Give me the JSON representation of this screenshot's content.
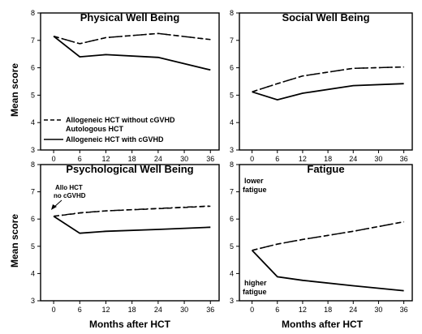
{
  "figure": {
    "ylabel": "Mean score",
    "xlabel": "Months after HCT"
  },
  "legend": {
    "entries": [
      "Allogeneic HCT without cGVHD",
      "Autologous HCT",
      "Allogeneic HCT with cGVHD"
    ]
  },
  "chart_data": [
    {
      "type": "line",
      "title": "Physical Well Being",
      "xlabel": "",
      "ylabel": "Mean score",
      "x_ticks": [
        0,
        6,
        12,
        18,
        24,
        30,
        36
      ],
      "y_ticks": [
        3,
        4,
        5,
        6,
        7,
        8
      ],
      "xlim": [
        -3,
        38
      ],
      "ylim": [
        3,
        8
      ],
      "legend_position": "bottom-left",
      "series": [
        {
          "name": "Allogeneic HCT without cGVHD",
          "style": "dashed",
          "x": [
            0,
            6,
            12,
            24,
            36
          ],
          "y": [
            7.15,
            6.88,
            7.1,
            7.25,
            7.03
          ]
        },
        {
          "name": "Autologous HCT",
          "style": "dashdot",
          "x": [
            0,
            6,
            12,
            24,
            36
          ],
          "y": [
            7.15,
            6.88,
            7.1,
            7.25,
            7.03
          ]
        },
        {
          "name": "Allogeneic HCT with cGVHD",
          "style": "solid",
          "x": [
            0,
            6,
            12,
            24,
            36
          ],
          "y": [
            7.15,
            6.4,
            6.48,
            6.38,
            5.92
          ]
        }
      ]
    },
    {
      "type": "line",
      "title": "Social Well Being",
      "xlabel": "",
      "ylabel": "",
      "x_ticks": [
        0,
        6,
        12,
        18,
        24,
        30,
        36
      ],
      "y_ticks": [
        3,
        4,
        5,
        6,
        7,
        8
      ],
      "xlim": [
        -3,
        38
      ],
      "ylim": [
        3,
        8
      ],
      "series": [
        {
          "name": "Allogeneic HCT without cGVHD",
          "style": "dashed",
          "x": [
            0,
            6,
            12,
            24,
            36
          ],
          "y": [
            5.12,
            5.42,
            5.7,
            5.98,
            6.03
          ]
        },
        {
          "name": "Autologous HCT",
          "style": "dashdot",
          "x": [
            0,
            6,
            12,
            24,
            36
          ],
          "y": [
            5.12,
            5.42,
            5.7,
            5.98,
            6.03
          ]
        },
        {
          "name": "Allogeneic HCT with cGVHD",
          "style": "solid",
          "x": [
            0,
            6,
            12,
            24,
            36
          ],
          "y": [
            5.12,
            4.83,
            5.07,
            5.35,
            5.42
          ]
        }
      ]
    },
    {
      "type": "line",
      "title": "Psychological Well Being",
      "xlabel": "Months after HCT",
      "ylabel": "Mean score",
      "x_ticks": [
        0,
        6,
        12,
        18,
        24,
        30,
        36
      ],
      "y_ticks": [
        3,
        4,
        5,
        6,
        7,
        8
      ],
      "xlim": [
        -3,
        38
      ],
      "ylim": [
        3,
        8
      ],
      "annotations": [
        "Allo HCT",
        "no cGVHD"
      ],
      "series": [
        {
          "name": "Allogeneic HCT without cGVHD",
          "style": "dashed",
          "x": [
            0,
            6,
            12,
            24,
            36
          ],
          "y": [
            6.1,
            6.22,
            6.3,
            6.38,
            6.47
          ]
        },
        {
          "name": "Autologous HCT",
          "style": "dashdot",
          "x": [
            0,
            6,
            12,
            24,
            36
          ],
          "y": [
            6.1,
            6.23,
            6.3,
            6.39,
            6.48
          ]
        },
        {
          "name": "Allogeneic HCT with cGVHD",
          "style": "solid",
          "x": [
            0,
            6,
            12,
            24,
            36
          ],
          "y": [
            6.1,
            5.48,
            5.55,
            5.62,
            5.7
          ]
        }
      ]
    },
    {
      "type": "line",
      "title": "Fatigue",
      "xlabel": "Months after HCT",
      "ylabel": "",
      "x_ticks": [
        0,
        6,
        12,
        18,
        24,
        30,
        36
      ],
      "y_ticks": [
        3,
        4,
        5,
        6,
        7,
        8
      ],
      "xlim": [
        -3,
        38
      ],
      "ylim": [
        3,
        8
      ],
      "annotations": [
        "lower",
        "fatigue",
        "higher",
        "fatigue"
      ],
      "series": [
        {
          "name": "Allogeneic HCT without cGVHD",
          "style": "dashed",
          "x": [
            0,
            6,
            12,
            24,
            36
          ],
          "y": [
            4.85,
            5.08,
            5.25,
            5.55,
            5.9
          ]
        },
        {
          "name": "Autologous HCT",
          "style": "dashdot",
          "x": [
            0,
            6,
            12,
            24,
            36
          ],
          "y": [
            4.85,
            5.08,
            5.25,
            5.55,
            5.9
          ]
        },
        {
          "name": "Allogeneic HCT with cGVHD",
          "style": "solid",
          "x": [
            0,
            6,
            12,
            24,
            36
          ],
          "y": [
            4.85,
            3.88,
            3.75,
            3.55,
            3.37
          ]
        }
      ]
    }
  ]
}
